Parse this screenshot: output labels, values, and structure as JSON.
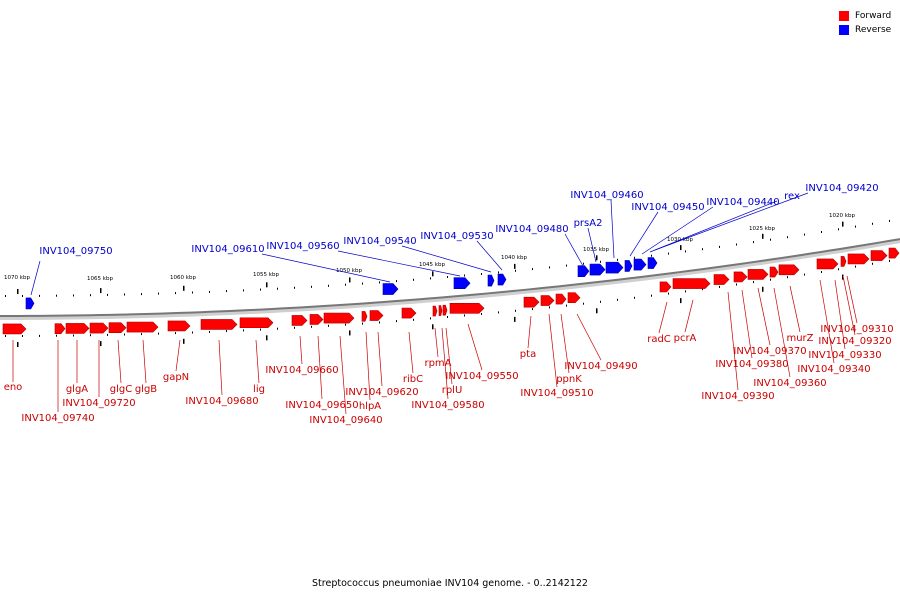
{
  "legend": [
    {
      "label": "Forward",
      "color": "#ff0000"
    },
    {
      "label": "Reverse",
      "color": "#0000ff"
    }
  ],
  "caption": "Streptococcus pneumoniae INV104 genome. - 0..2142122",
  "colors": {
    "forward": "#ff0000",
    "reverse": "#0000ff",
    "forward_label": "#cc0000",
    "reverse_label": "#0000cc",
    "backbone": "#777777"
  },
  "scale_ticks_kbp": [
    "1070 kbp",
    "1065 kbp",
    "1060 kbp",
    "1055 kbp",
    "1050 kbp",
    "1045 kbp",
    "1040 kbp",
    "1035 kbp",
    "1030 kbp",
    "1025 kbp",
    "1020 kbp"
  ],
  "forward_genes": [
    "eno",
    "INV104_09740",
    "glgA",
    "INV104_09720",
    "glgC",
    "glgB",
    "gapN",
    "INV104_09680",
    "lig",
    "INV104_09660",
    "INV104_09650",
    "INV104_09640",
    "INV104_09620",
    "hlpA",
    "ribC",
    "rpmA",
    "rplU",
    "INV104_09580",
    "INV104_09550",
    "pta",
    "INV104_09510",
    "ppnK",
    "INV104_09490",
    "radC",
    "pcrA",
    "INV104_09390",
    "INV104_09380",
    "INV104_09370",
    "INV104_09360",
    "murZ",
    "INV104_09340",
    "INV104_09330",
    "INV104_09320",
    "INV104_09310"
  ],
  "reverse_genes": [
    "INV104_09750",
    "INV104_09610",
    "INV104_09560",
    "INV104_09540",
    "INV104_09530",
    "INV104_09480",
    "prsA2",
    "INV104_09460",
    "INV104_09450",
    "INV104_09440",
    "rex",
    "INV104_09420"
  ]
}
